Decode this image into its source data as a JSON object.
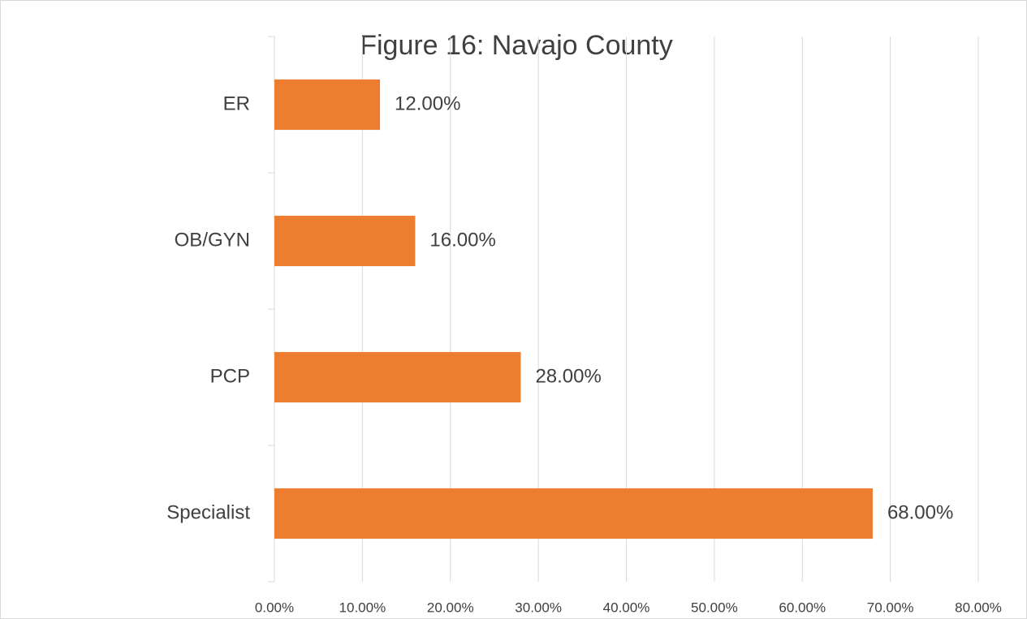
{
  "chart_data": {
    "type": "bar",
    "orientation": "horizontal",
    "title": "Figure 16: Navajo County",
    "categories": [
      "ER",
      "OB/GYN",
      "PCP",
      "Specialist"
    ],
    "values": [
      12,
      16,
      28,
      68
    ],
    "value_labels": [
      "12.00%",
      "16.00%",
      "28.00%",
      "68.00%"
    ],
    "color": "#ed7d31",
    "xlim": [
      0,
      80
    ],
    "xticks": [
      {
        "value": 0,
        "label": "0.00%"
      },
      {
        "value": 10,
        "label": "10.00%"
      },
      {
        "value": 20,
        "label": "20.00%"
      },
      {
        "value": 30,
        "label": "30.00%"
      },
      {
        "value": 40,
        "label": "40.00%"
      },
      {
        "value": 50,
        "label": "50.00%"
      },
      {
        "value": 60,
        "label": "60.00%"
      },
      {
        "value": 70,
        "label": "70.00%"
      },
      {
        "value": 80,
        "label": "80.00%"
      }
    ],
    "grid": true
  }
}
